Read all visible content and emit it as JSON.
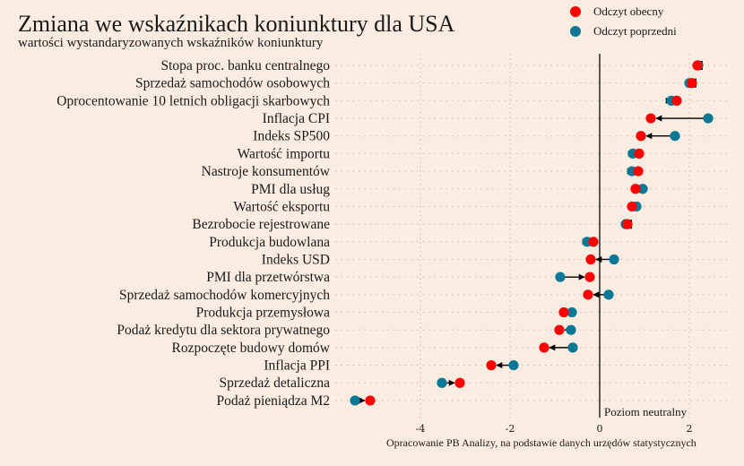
{
  "chart_data": {
    "type": "dumbbell",
    "title": "Zmiana we wskaźnikach koniunktury dla USA",
    "subtitle": "wartości wystandaryzowanych wskaźników koniunktury",
    "source": "Opracowanie PB Analizy, na podstawie danych urzędów statystycznych",
    "reference_line_label": "Poziom neutralny",
    "reference_value": 0,
    "xlim": [
      -5.9,
      2.8
    ],
    "xticks": [
      -4,
      -2,
      0,
      2
    ],
    "xtick_labels": [
      "-4",
      "-2",
      "0",
      "2"
    ],
    "legend": [
      {
        "name": "Odczyt obecny",
        "color": "#ff0000"
      },
      {
        "name": "Odczyt poprzedni",
        "color": "#0c7896"
      }
    ],
    "legend_position": "top-right",
    "categories": [
      "Stopa proc. banku centralnego",
      "Sprzedaż samochodów osobowych",
      "Oprocentowanie 10 letnich obligacji skarbowych",
      "Inflacja CPI",
      "Indeks SP500",
      "Wartość importu",
      "Nastroje konsumentów",
      "PMI dla usług",
      "Wartość eksportu",
      "Bezrobocie rejestrowane",
      "Produkcja budowlana",
      "Indeks USD",
      "PMI dla przetwórstwa",
      "Sprzedaż samochodów komercyjnych",
      "Produkcja przemysłowa",
      "Podaż kredytu dla sektora prywatnego",
      "Rozpoczęte budowy domów",
      "Inflacja PPI",
      "Sprzedaż detaliczna",
      "Podaż pieniądza M2"
    ],
    "series": [
      {
        "name": "Odczyt obecny",
        "values": [
          2.18,
          2.06,
          1.72,
          1.14,
          0.92,
          0.88,
          0.86,
          0.8,
          0.72,
          0.62,
          -0.14,
          -0.2,
          -0.22,
          -0.26,
          -0.8,
          -0.9,
          -1.24,
          -2.42,
          -3.12,
          -5.12
        ]
      },
      {
        "name": "Odczyt poprzedni",
        "values": [
          2.2,
          2.0,
          1.6,
          2.42,
          1.68,
          0.74,
          0.72,
          0.96,
          0.82,
          0.58,
          -0.28,
          0.32,
          -0.88,
          0.2,
          -0.62,
          -0.64,
          -0.6,
          -1.92,
          -3.52,
          -5.46
        ]
      }
    ]
  }
}
